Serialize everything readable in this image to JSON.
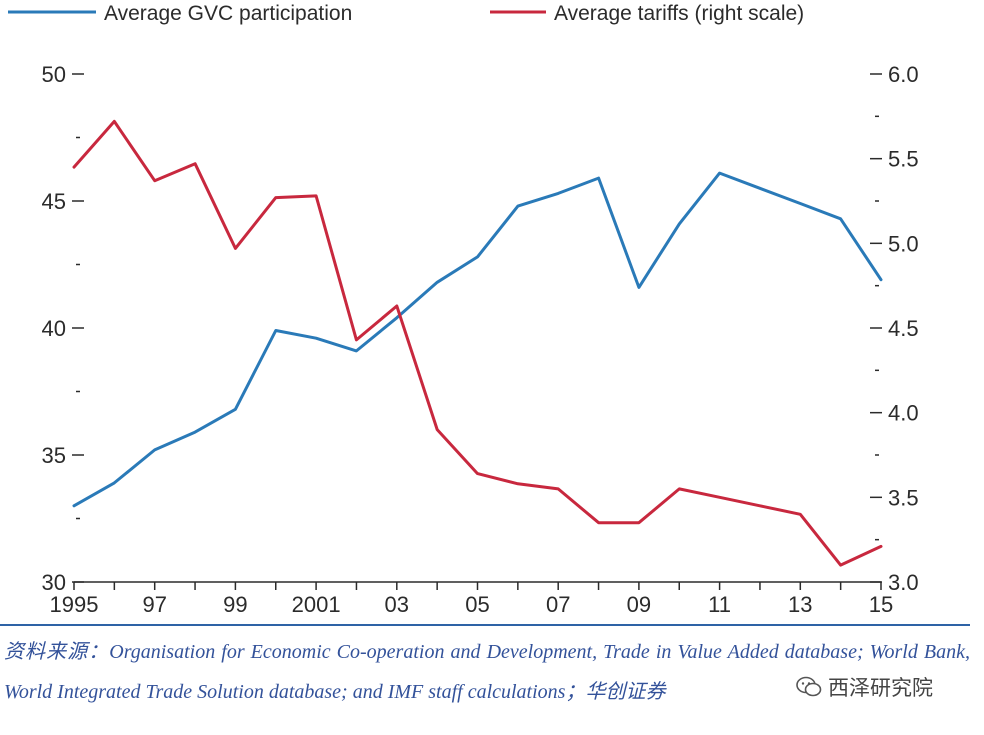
{
  "legend": {
    "gvc_label": "Average GVC participation",
    "tariff_label": "Average tariffs (right scale)"
  },
  "colors": {
    "gvc": "#2a7ab8",
    "tariff": "#c8283e",
    "axis": "#2b2b2b",
    "source_rule": "#2e63a6",
    "source_text": "#33529a"
  },
  "chart_data": {
    "type": "line",
    "x": [
      1995,
      1996,
      1997,
      1998,
      1999,
      2000,
      2001,
      2002,
      2003,
      2004,
      2005,
      2006,
      2007,
      2008,
      2009,
      2010,
      2011,
      2012,
      2013,
      2014,
      2015
    ],
    "x_tick_labels": [
      "1995",
      "97",
      "99",
      "2001",
      "03",
      "05",
      "07",
      "09",
      "11",
      "13",
      "15"
    ],
    "x_tick_years": [
      1995,
      1997,
      1999,
      2001,
      2003,
      2005,
      2007,
      2009,
      2011,
      2013,
      2015
    ],
    "left_axis": {
      "ylim": [
        30,
        50
      ],
      "major_ticks": [
        "30",
        "35",
        "40",
        "45",
        "50"
      ],
      "minor_step": 2.5
    },
    "right_axis": {
      "ylim": [
        3.0,
        6.0
      ],
      "major_ticks": [
        "3.0",
        "3.5",
        "4.0",
        "4.5",
        "5.0",
        "5.5",
        "6.0"
      ],
      "minor_step": 0.25
    },
    "series": [
      {
        "name": "Average GVC participation",
        "axis": "left",
        "values": [
          33.0,
          33.9,
          35.2,
          35.9,
          36.8,
          39.9,
          39.6,
          39.1,
          40.4,
          41.8,
          42.8,
          44.8,
          45.3,
          45.9,
          41.6,
          44.1,
          46.1,
          45.5,
          44.9,
          44.3,
          41.9
        ]
      },
      {
        "name": "Average tariffs (right scale)",
        "axis": "right",
        "values": [
          5.45,
          5.72,
          5.37,
          5.47,
          4.97,
          5.27,
          5.28,
          4.43,
          4.63,
          3.9,
          3.64,
          3.58,
          3.55,
          3.35,
          3.35,
          3.55,
          3.5,
          3.45,
          3.4,
          3.1,
          3.21
        ]
      }
    ]
  },
  "source": {
    "text": "资料来源：Organisation for Economic Co-operation and Development, Trade in Value Added database; World Bank, World Integrated Trade Solution database; and IMF staff calculations；华创证券"
  },
  "watermark": {
    "label": "西泽研究院",
    "icon": "wechat-icon"
  }
}
